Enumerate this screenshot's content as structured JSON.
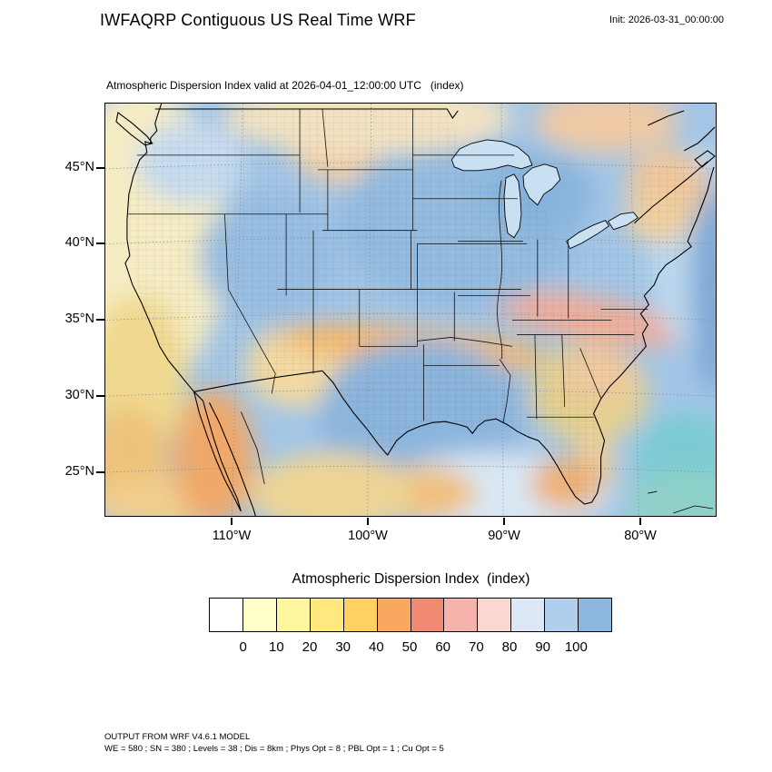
{
  "header": {
    "title": "IWFAQRP Contiguous US Real Time WRF",
    "init_label": "Init: 2026-03-31_00:00:00"
  },
  "map": {
    "subtitle": "Atmospheric Dispersion Index valid at 2026-04-01_12:00:00 UTC   (index)",
    "lat_labels": [
      "45°N",
      "40°N",
      "35°N",
      "30°N",
      "25°N"
    ],
    "lon_labels": [
      "110°W",
      "100°W",
      "90°W",
      "80°W"
    ]
  },
  "colorbar": {
    "title": "Atmospheric Dispersion Index  (index)",
    "ticks": [
      "0",
      "10",
      "20",
      "30",
      "40",
      "50",
      "60",
      "70",
      "80",
      "90",
      "100"
    ],
    "colors": [
      "#FFFFFF",
      "#FFFFC8",
      "#FFF6A0",
      "#FFE97E",
      "#FED162",
      "#FAA75F",
      "#F28A72",
      "#F5B3AC",
      "#FAD7D3",
      "#DCE8F5",
      "#AFCFEC",
      "#8AB6E0"
    ]
  },
  "footer": {
    "line1": "OUTPUT FROM WRF V4.6.1 MODEL",
    "line2": "WE = 580 ; SN = 380 ; Levels = 38 ; Dis = 8km ; Phys Opt = 8 ; PBL Opt = 1 ; Cu Opt = 5"
  }
}
